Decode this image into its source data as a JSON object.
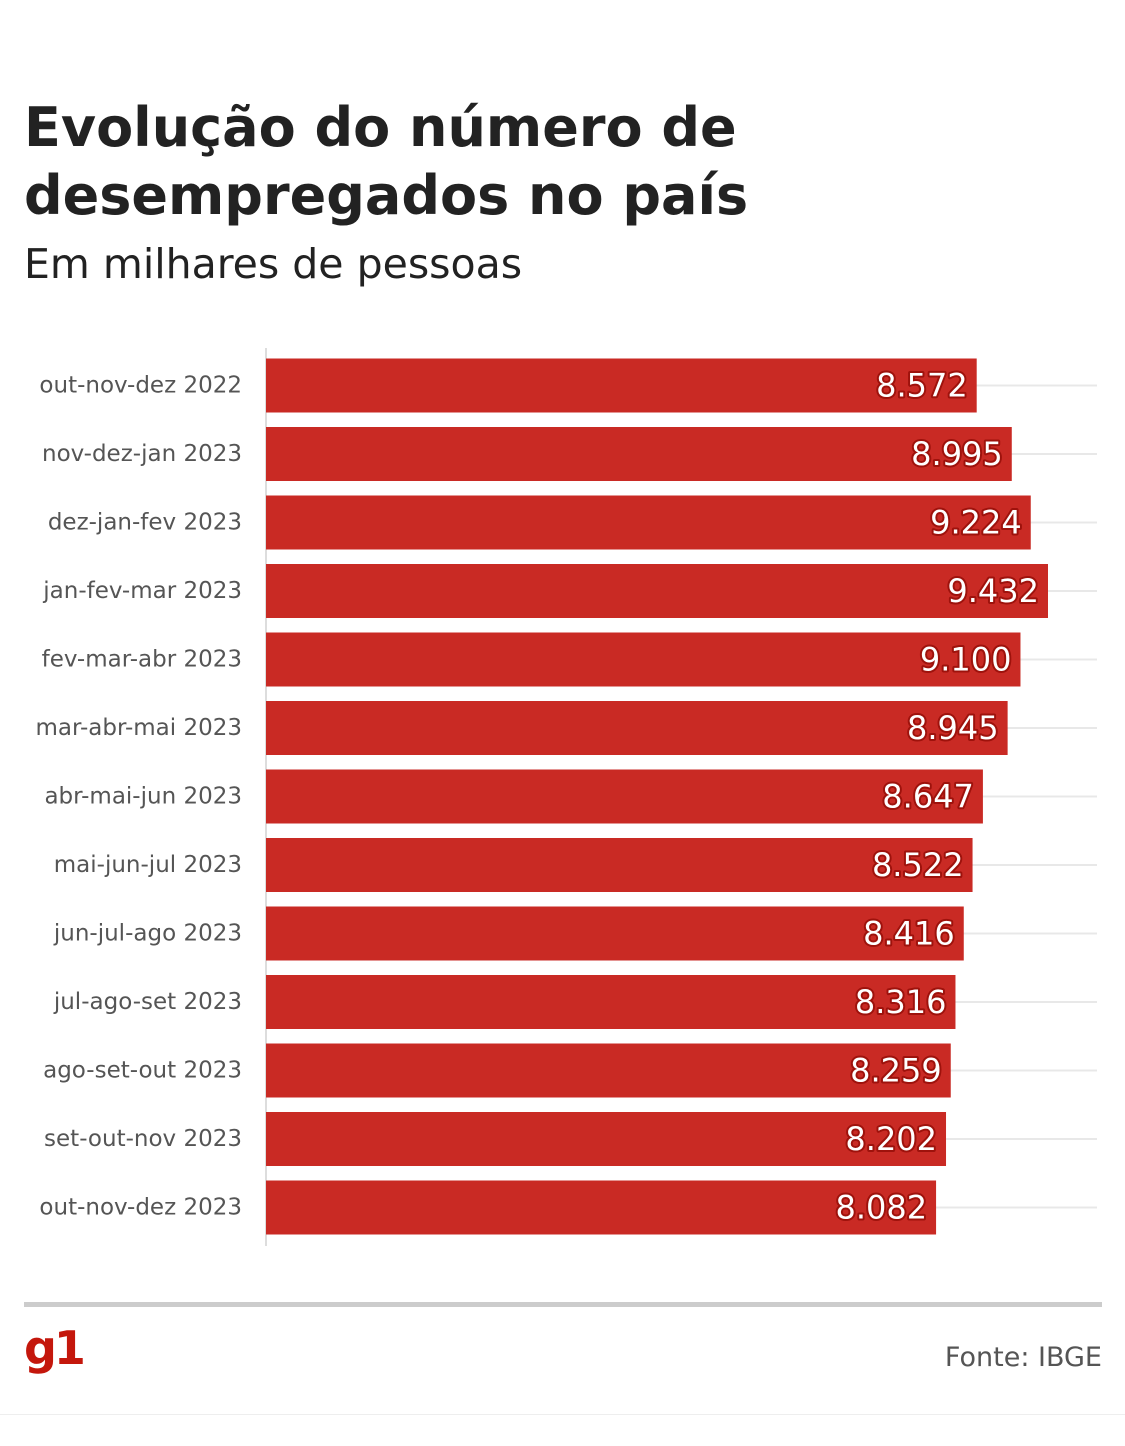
{
  "chart_data": {
    "type": "bar",
    "orientation": "horizontal",
    "title": "Evolução do número de desempregados no país",
    "subtitle": "Em milhares de pessoas",
    "categories": [
      "out-nov-dez 2022",
      "nov-dez-jan 2023",
      "dez-jan-fev 2023",
      "jan-fev-mar 2023",
      "fev-mar-abr 2023",
      "mar-abr-mai 2023",
      "abr-mai-jun 2023",
      "mai-jun-jul 2023",
      "jun-jul-ago 2023",
      "jul-ago-set 2023",
      "ago-set-out 2023",
      "set-out-nov 2023",
      "out-nov-dez 2023"
    ],
    "values": [
      8572,
      8995,
      9224,
      9432,
      9100,
      8945,
      8647,
      8522,
      8416,
      8316,
      8259,
      8202,
      8082
    ],
    "value_labels": [
      "8.572",
      "8.995",
      "9.224",
      "9.432",
      "9.100",
      "8.945",
      "8.647",
      "8.522",
      "8.416",
      "8.316",
      "8.259",
      "8.202",
      "8.082"
    ],
    "xlim": [
      0,
      10000
    ],
    "bar_color": "#c92a24",
    "label_color": "#ffffff",
    "grid": true,
    "legend": "none"
  },
  "footer": {
    "logo_text": "g1",
    "source": "Fonte: IBGE"
  },
  "colors": {
    "accent": "#c4170c",
    "bar": "#c92a24",
    "gridline": "#e8e8e8"
  }
}
